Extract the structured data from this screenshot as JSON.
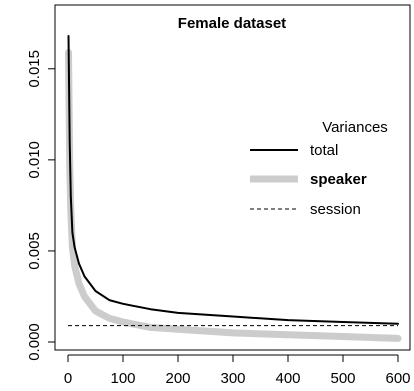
{
  "chart_data": {
    "type": "line",
    "title": "Female dataset",
    "xlabel": "",
    "ylabel": "",
    "xlim": [
      0,
      600
    ],
    "ylim": [
      0,
      0.0168
    ],
    "x_ticks": [
      "0",
      "100",
      "200",
      "300",
      "400",
      "500",
      "600"
    ],
    "x_tick_values": [
      0,
      100,
      200,
      300,
      400,
      500,
      600
    ],
    "y_ticks": [
      "0.000",
      "0.005",
      "0.010",
      "0.015"
    ],
    "y_tick_values": [
      0,
      0.005,
      0.01,
      0.015
    ],
    "legend": {
      "title": "Variances",
      "placement": "right"
    },
    "series": [
      {
        "name": "total",
        "color": "#000000",
        "style": "solid",
        "x": [
          1,
          3,
          5,
          8,
          12,
          20,
          30,
          50,
          75,
          100,
          150,
          200,
          300,
          400,
          500,
          600
        ],
        "y": [
          0.0168,
          0.011,
          0.008,
          0.006,
          0.0052,
          0.0043,
          0.0036,
          0.0028,
          0.0023,
          0.0021,
          0.0018,
          0.0016,
          0.0014,
          0.0012,
          0.0011,
          0.001
        ]
      },
      {
        "name": "speaker",
        "color": "#cccccc",
        "style": "solid-thick",
        "x": [
          1,
          3,
          5,
          8,
          12,
          20,
          30,
          50,
          75,
          100,
          150,
          200,
          300,
          400,
          500,
          600
        ],
        "y": [
          0.0159,
          0.0098,
          0.0072,
          0.0052,
          0.0042,
          0.0032,
          0.0025,
          0.0017,
          0.0013,
          0.0011,
          0.0008,
          0.0007,
          0.0005,
          0.0004,
          0.0003,
          0.0002
        ]
      },
      {
        "name": "session",
        "color": "#000000",
        "style": "dashed",
        "x": [
          0,
          600
        ],
        "y": [
          0.0009,
          0.0009
        ]
      }
    ]
  }
}
